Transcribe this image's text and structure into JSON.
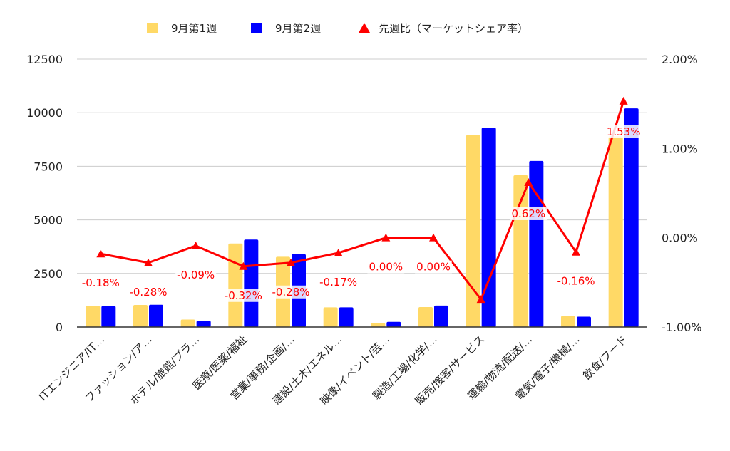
{
  "chart_data": {
    "type": "bar",
    "combo_line_series": true,
    "categories": [
      "ITエンジニア/IT…",
      "ファッション/ア…",
      "ホテル/旅館/ブラ…",
      "医療/医薬/福祉",
      "営業/事務/企画/…",
      "建設/土木/エネル…",
      "映像/イベント/芸…",
      "製造/工場/化学/…",
      "販売/接客/サービス",
      "運輸/物流/配送/…",
      "電気/電子/機械/…",
      "飲食/フード"
    ],
    "series": [
      {
        "name": "9月第1週",
        "color": "#ffd966",
        "values": [
          980,
          1030,
          350,
          3900,
          3280,
          920,
          180,
          930,
          8950,
          7080,
          520,
          8900
        ]
      },
      {
        "name": "9月第2週",
        "color": "#0000ff",
        "values": [
          980,
          1040,
          290,
          4080,
          3400,
          920,
          240,
          1000,
          9300,
          7750,
          480,
          10200
        ]
      }
    ],
    "line_series": {
      "name": "先週比（マーケットシェア率）",
      "color": "#ff0000",
      "marker": "triangle",
      "axis": "right",
      "values": [
        -0.18,
        -0.28,
        -0.09,
        -0.32,
        -0.28,
        -0.17,
        0.0,
        0.0,
        -0.69,
        0.62,
        -0.16,
        1.53
      ],
      "labels": [
        "-0.18%",
        "-0.28%",
        "-0.09%",
        "-0.32%",
        "-0.28%",
        "-0.17%",
        "0.00%",
        "0.00%",
        "",
        "0.62%",
        "-0.16%",
        "1.53%"
      ]
    },
    "y_left": {
      "min": 0,
      "max": 12500,
      "ticks": [
        "0",
        "2500",
        "5000",
        "7500",
        "10000",
        "12500"
      ]
    },
    "y_right": {
      "min": -1.0,
      "max": 2.0,
      "ticks": [
        "-1.00%",
        "0.00%",
        "1.00%",
        "2.00%"
      ]
    },
    "legend_position": "top-center",
    "grid": true
  }
}
